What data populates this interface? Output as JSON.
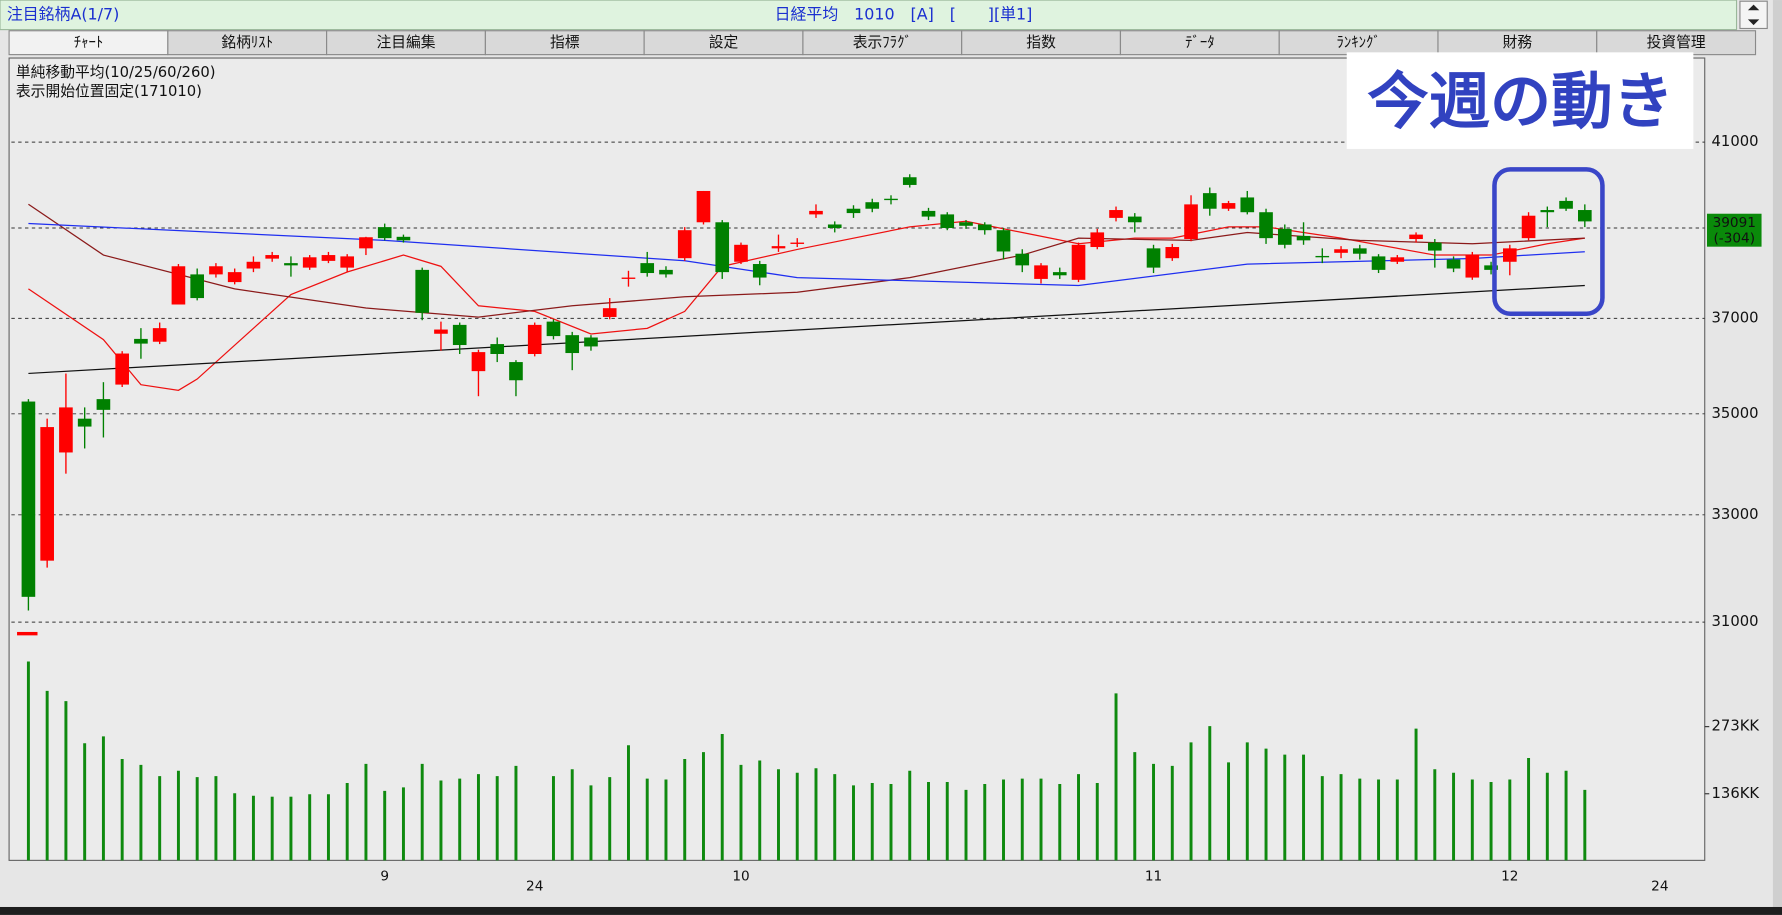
{
  "header": {
    "list": "注目銘柄A(1/7)",
    "symbol": "日経平均　1010　[A]　[　　][単1]"
  },
  "tabs": [
    "ﾁｬｰﾄ",
    "銘柄ﾘｽﾄ",
    "注目編集",
    "指標",
    "設定",
    "表示ﾌﾗｸﾞ",
    "指数",
    "ﾃﾞｰﾀ",
    "ﾗﾝｷﾝｸﾞ",
    "財務",
    "投資管理"
  ],
  "chart_data": {
    "type": "candlestick",
    "notes": [
      "単純移動平均(10/25/60/260)",
      "表示開始位置固定(171010)"
    ],
    "annotation": "今週の動き",
    "price_tag": [
      "39091",
      "(-304)"
    ],
    "log_scale": true,
    "grid": true,
    "up_color": "#ff0000",
    "down_color": "#008000",
    "volume_color": "#0f8a0f",
    "ylim": [
      30640,
      43030
    ],
    "yticks": [
      31000,
      33000,
      35000,
      37000,
      39000,
      41000
    ],
    "volume_ylim": [
      0,
      457
    ],
    "volume_yticks": [
      {
        "value": 136,
        "label": "136KK"
      },
      {
        "value": 273,
        "label": "273KK"
      }
    ],
    "categories": [
      null,
      null,
      null,
      null,
      null,
      null,
      null,
      null,
      null,
      null,
      null,
      null,
      null,
      null,
      null,
      null,
      null,
      null,
      null,
      "9",
      null,
      null,
      null,
      null,
      null,
      null,
      null,
      null,
      null,
      null,
      null,
      null,
      null,
      null,
      null,
      null,
      null,
      null,
      "10",
      null,
      null,
      null,
      null,
      null,
      null,
      null,
      null,
      null,
      null,
      null,
      null,
      null,
      null,
      null,
      null,
      null,
      null,
      null,
      null,
      null,
      "11",
      null,
      null,
      null,
      null,
      null,
      null,
      null,
      null,
      null,
      null,
      null,
      null,
      null,
      null,
      null,
      null,
      null,
      null,
      "12",
      null,
      null,
      null,
      null,
      null,
      null,
      null,
      null,
      null,
      null
    ],
    "year_labels": [
      null,
      null,
      null,
      null,
      null,
      null,
      null,
      null,
      null,
      null,
      null,
      null,
      null,
      null,
      null,
      null,
      null,
      null,
      null,
      null,
      null,
      null,
      null,
      null,
      null,
      null,
      null,
      "24",
      null,
      null,
      null,
      null,
      null,
      null,
      null,
      null,
      null,
      null,
      null,
      null,
      null,
      null,
      null,
      null,
      null,
      null,
      null,
      null,
      null,
      null,
      null,
      null,
      null,
      null,
      null,
      null,
      null,
      null,
      null,
      null,
      null,
      null,
      null,
      null,
      null,
      null,
      null,
      null,
      null,
      null,
      null,
      null,
      null,
      null,
      null,
      null,
      null,
      null,
      null,
      null,
      null,
      null,
      null,
      null,
      null,
      null,
      null,
      "24",
      null,
      null
    ],
    "open": [
      35250,
      32130,
      34220,
      34900,
      35300,
      35600,
      36560,
      36500,
      37300,
      37960,
      37960,
      37790,
      38090,
      38310,
      38210,
      38110,
      38260,
      38110,
      38540,
      39020,
      38800,
      38060,
      36670,
      36860,
      35880,
      36450,
      36070,
      36240,
      36930,
      36640,
      36590,
      37030,
      37860,
      38210,
      38060,
      38320,
      39130,
      39130,
      38240,
      38190,
      38540,
      38640,
      39310,
      39080,
      39440,
      39590,
      39670,
      40170,
      39390,
      39310,
      39130,
      39080,
      38950,
      38420,
      37860,
      38010,
      37840,
      38570,
      39230,
      39260,
      38540,
      38320,
      38750,
      39800,
      39440,
      39700,
      39360,
      38980,
      38820,
      38370,
      38440,
      38540,
      38360,
      38240,
      38750,
      38670,
      38290,
      37890,
      38160,
      38240,
      38770,
      39410,
      39620,
      39410,
      null,
      null,
      null,
      null,
      null,
      null
    ],
    "high": [
      35300,
      34900,
      35830,
      35130,
      35650,
      36300,
      36790,
      36910,
      38190,
      38090,
      38210,
      38090,
      38360,
      38460,
      38360,
      38390,
      38460,
      38410,
      38800,
      39100,
      38850,
      38110,
      36930,
      36910,
      36330,
      36590,
      36110,
      36910,
      36980,
      36710,
      36640,
      37440,
      38040,
      38460,
      38140,
      39020,
      39850,
      39180,
      38670,
      38260,
      38850,
      38770,
      39540,
      39150,
      39520,
      39670,
      39750,
      40240,
      39460,
      39360,
      39180,
      39130,
      39000,
      38520,
      38210,
      38110,
      38670,
      38980,
      39490,
      39340,
      38620,
      38640,
      39750,
      39930,
      39620,
      39850,
      39440,
      39080,
      39130,
      38540,
      38590,
      38620,
      38410,
      38390,
      38900,
      38750,
      38360,
      38460,
      38240,
      38620,
      39360,
      39490,
      39700,
      39540,
      null,
      null,
      null,
      null,
      null,
      null
    ],
    "low": [
      31210,
      32000,
      33800,
      34300,
      34520,
      35550,
      36140,
      36450,
      37300,
      37390,
      37890,
      37740,
      38010,
      38240,
      37910,
      38060,
      38210,
      38010,
      38390,
      38720,
      38670,
      36960,
      36310,
      36240,
      35360,
      36070,
      35360,
      36190,
      36550,
      35900,
      36310,
      36980,
      37690,
      37910,
      37890,
      38260,
      39080,
      37860,
      38190,
      37720,
      38460,
      38570,
      39230,
      38900,
      39230,
      39360,
      39540,
      39930,
      39180,
      38950,
      38980,
      38850,
      38290,
      38010,
      37760,
      37860,
      37790,
      38520,
      39150,
      38900,
      37990,
      38260,
      38700,
      39280,
      39390,
      39310,
      38640,
      38540,
      38620,
      38210,
      38320,
      38290,
      37990,
      38190,
      38670,
      38110,
      38010,
      37840,
      37960,
      37940,
      38720,
      39020,
      39390,
      39020,
      null,
      null,
      null,
      null,
      null,
      null
    ],
    "close": [
      31460,
      34730,
      35130,
      34740,
      35080,
      36250,
      36460,
      36790,
      38140,
      37440,
      38140,
      38010,
      38240,
      38390,
      38160,
      38340,
      38390,
      38360,
      38790,
      38770,
      38720,
      37120,
      36760,
      36430,
      36280,
      36240,
      35690,
      36860,
      36620,
      36260,
      36400,
      37220,
      37890,
      37990,
      37960,
      38950,
      39850,
      38010,
      38620,
      37890,
      38590,
      38670,
      39390,
      39000,
      39340,
      39440,
      39650,
      39990,
      39260,
      39000,
      39050,
      38950,
      38470,
      38160,
      38160,
      37940,
      38620,
      38900,
      39410,
      39130,
      38110,
      38570,
      39540,
      39440,
      39570,
      39360,
      38770,
      38620,
      38720,
      38340,
      38520,
      38420,
      38060,
      38340,
      38850,
      38490,
      38090,
      38390,
      38060,
      38540,
      39280,
      39360,
      39440,
      39150,
      null,
      null,
      null,
      null,
      null,
      null
    ],
    "volume": [
      406,
      346,
      325,
      239,
      253,
      207,
      195,
      172,
      183,
      170,
      172,
      137,
      132,
      130,
      130,
      135,
      135,
      158,
      197,
      142,
      149,
      197,
      163,
      167,
      176,
      172,
      193,
      null,
      172,
      186,
      153,
      170,
      235,
      167,
      165,
      207,
      221,
      258,
      195,
      204,
      186,
      179,
      188,
      176,
      153,
      158,
      156,
      183,
      160,
      160,
      144,
      156,
      165,
      167,
      167,
      156,
      176,
      158,
      341,
      221,
      197,
      193,
      241,
      274,
      200,
      241,
      228,
      216,
      216,
      172,
      176,
      167,
      165,
      165,
      269,
      186,
      179,
      165,
      160,
      165,
      209,
      179,
      183,
      144,
      null,
      null,
      null,
      null,
      null,
      null
    ],
    "moving_averages": [
      {
        "color": "#ee1111",
        "x": [
          0,
          4,
          6,
          8,
          9,
          12,
          14,
          17,
          20,
          22,
          24,
          27,
          30,
          33,
          35,
          37,
          41,
          47,
          50,
          53,
          56,
          59,
          61,
          64,
          66,
          70,
          75,
          78,
          81,
          83
        ],
        "values": [
          37641,
          36545,
          35598,
          35481,
          35715,
          36786,
          37517,
          38013,
          38390,
          38138,
          37272,
          37150,
          36665,
          36786,
          37150,
          38138,
          38516,
          39025,
          39154,
          38897,
          38643,
          38770,
          38770,
          39025,
          39025,
          38770,
          38390,
          38390,
          38643,
          38770
        ]
      },
      {
        "color": "#8b1a1a",
        "x": [
          0,
          4,
          11,
          18,
          24,
          29,
          35,
          41,
          47,
          53,
          56,
          62,
          65,
          71,
          77,
          83
        ],
        "values": [
          39542,
          38390,
          37641,
          37223,
          37028,
          37272,
          37468,
          37566,
          37889,
          38390,
          38770,
          38719,
          38897,
          38719,
          38643,
          38770
        ]
      },
      {
        "color": "#1f2ff0",
        "x": [
          0,
          19,
          35,
          41,
          56,
          65,
          77,
          83
        ],
        "values": [
          39102,
          38719,
          38264,
          37889,
          37715,
          38188,
          38314,
          38465
        ]
      },
      {
        "color": "#111111",
        "x": [
          0,
          83
        ],
        "values": [
          35832,
          37715
        ]
      }
    ]
  }
}
